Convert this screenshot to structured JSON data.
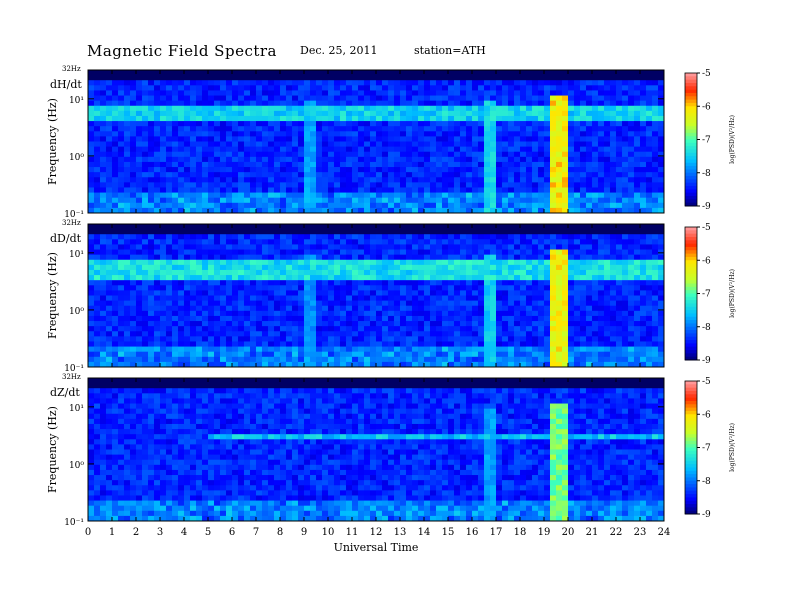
{
  "header": {
    "title": "Magnetic  Field  Spectra",
    "date": "Dec. 25, 2011",
    "station": "station=ATH"
  },
  "chart_data": [
    {
      "type": "heatmap",
      "panel_label": "dH/dt",
      "ylabel": "Frequency  (Hz)",
      "yscale": "log",
      "ylim": [
        0.1,
        32
      ],
      "y_ticks": [
        "10¹",
        "10⁰",
        "10⁻¹"
      ],
      "top_label": "32Hz",
      "xlim": [
        0,
        24
      ],
      "colorbar": {
        "range": [
          -9,
          -5
        ],
        "ticks": [
          "-5",
          "-6",
          "-7",
          "-8",
          "-9"
        ],
        "label": "log(PSD)(V²/Hz)"
      },
      "features": [
        {
          "kind": "band",
          "f_hz": [
            4,
            8
          ],
          "intensity": -7.3,
          "t_range": [
            0,
            24
          ]
        },
        {
          "kind": "burst",
          "t_range": [
            19.3,
            20.0
          ],
          "f_hz": [
            0.1,
            12
          ],
          "intensity": -5.8
        },
        {
          "kind": "burst",
          "t_range": [
            16.6,
            16.9
          ],
          "f_hz": [
            0.1,
            10
          ],
          "intensity": -7.2
        },
        {
          "kind": "burst",
          "t_range": [
            9.1,
            9.4
          ],
          "f_hz": [
            0.1,
            10
          ],
          "intensity": -7.6
        }
      ]
    },
    {
      "type": "heatmap",
      "panel_label": "dD/dt",
      "ylabel": "Frequency  (Hz)",
      "yscale": "log",
      "ylim": [
        0.1,
        32
      ],
      "y_ticks": [
        "10¹",
        "10⁰",
        "10⁻¹"
      ],
      "top_label": "32Hz",
      "xlim": [
        0,
        24
      ],
      "colorbar": {
        "range": [
          -9,
          -5
        ],
        "ticks": [
          "-5",
          "-6",
          "-7",
          "-8",
          "-9"
        ],
        "label": "log(PSD)(V²/Hz)"
      },
      "features": [
        {
          "kind": "band",
          "f_hz": [
            3.5,
            8
          ],
          "intensity": -7.2,
          "t_range": [
            0,
            24
          ]
        },
        {
          "kind": "burst",
          "t_range": [
            19.3,
            20.0
          ],
          "f_hz": [
            0.1,
            12
          ],
          "intensity": -5.9
        },
        {
          "kind": "burst",
          "t_range": [
            16.6,
            16.9
          ],
          "f_hz": [
            0.1,
            10
          ],
          "intensity": -7.3
        },
        {
          "kind": "burst",
          "t_range": [
            9.1,
            9.4
          ],
          "f_hz": [
            0.1,
            10
          ],
          "intensity": -7.7
        }
      ]
    },
    {
      "type": "heatmap",
      "panel_label": "dZ/dt",
      "ylabel": "Frequency  (Hz)",
      "yscale": "log",
      "ylim": [
        0.1,
        32
      ],
      "y_ticks": [
        "10¹",
        "10⁰",
        "10⁻¹"
      ],
      "top_label": "32Hz",
      "xlim": [
        0,
        24
      ],
      "xlabel": "Universal  Time",
      "x_ticks": [
        "0",
        "1",
        "2",
        "3",
        "4",
        "5",
        "6",
        "7",
        "8",
        "9",
        "10",
        "11",
        "12",
        "13",
        "14",
        "15",
        "16",
        "17",
        "18",
        "19",
        "20",
        "21",
        "22",
        "23",
        "24"
      ],
      "colorbar": {
        "range": [
          -9,
          -5
        ],
        "ticks": [
          "-5",
          "-6",
          "-7",
          "-8",
          "-9"
        ],
        "label": "log(PSD)(V²/Hz)"
      },
      "features": [
        {
          "kind": "band",
          "f_hz": [
            2.5,
            3.5
          ],
          "intensity": -7.4,
          "t_range": [
            5,
            24
          ]
        },
        {
          "kind": "burst",
          "t_range": [
            19.3,
            20.0
          ],
          "f_hz": [
            0.1,
            12
          ],
          "intensity": -6.6
        },
        {
          "kind": "burst",
          "t_range": [
            16.6,
            16.9
          ],
          "f_hz": [
            0.1,
            10
          ],
          "intensity": -7.6
        }
      ]
    }
  ]
}
